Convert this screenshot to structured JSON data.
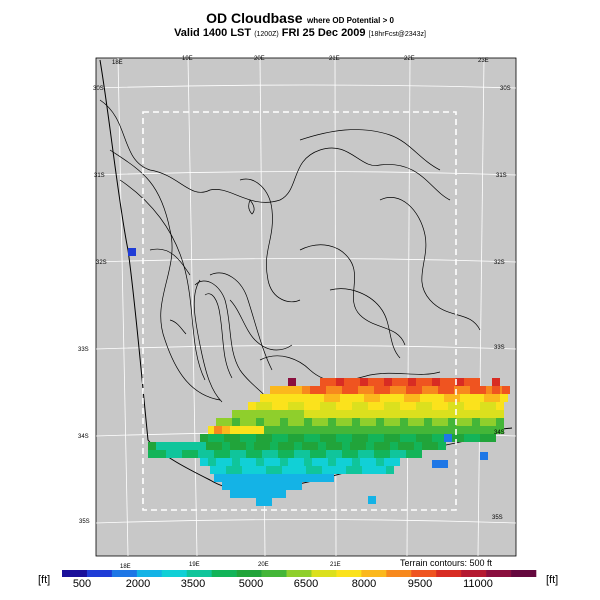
{
  "title": {
    "main": "OD Cloudbase",
    "qualifier": "where OD Potential > 0",
    "valid_prefix": "Valid 1400 LST",
    "valid_utc": "(1200Z)",
    "valid_date": "FRI 25 Dec 2009",
    "forecast_info": "[18hrFcst@2343z]"
  },
  "map": {
    "lon_labels_top": [
      "18E",
      "19E",
      "20E",
      "21E",
      "22E",
      "23E"
    ],
    "lon_labels_bottom": [
      "18E",
      "19E",
      "20E",
      "21E"
    ],
    "lat_labels_left": [
      "30S",
      "31S",
      "32S",
      "33S",
      "34S",
      "35S"
    ],
    "lat_labels_right": [
      "30S",
      "31S",
      "32S",
      "33S",
      "34S",
      "35S"
    ],
    "terrain_note": "Terrain contours: 500 ft",
    "background_color": "#c8c8c8"
  },
  "colorbar": {
    "unit_left": "[ft]",
    "unit_right": "[ft]",
    "tick_labels": [
      "500",
      "2000",
      "3500",
      "5000",
      "6500",
      "8000",
      "9500",
      "11000"
    ],
    "colors": [
      "#1a0f9a",
      "#1f3cd6",
      "#1e77e6",
      "#14b3e6",
      "#11d0d6",
      "#10c59b",
      "#13b459",
      "#21a43a",
      "#44b638",
      "#8fcf2c",
      "#dbe01e",
      "#fbe21c",
      "#fbb81d",
      "#f7891e",
      "#ef5420",
      "#d82c23",
      "#b51a31",
      "#8a0f3e",
      "#65083e"
    ]
  }
}
